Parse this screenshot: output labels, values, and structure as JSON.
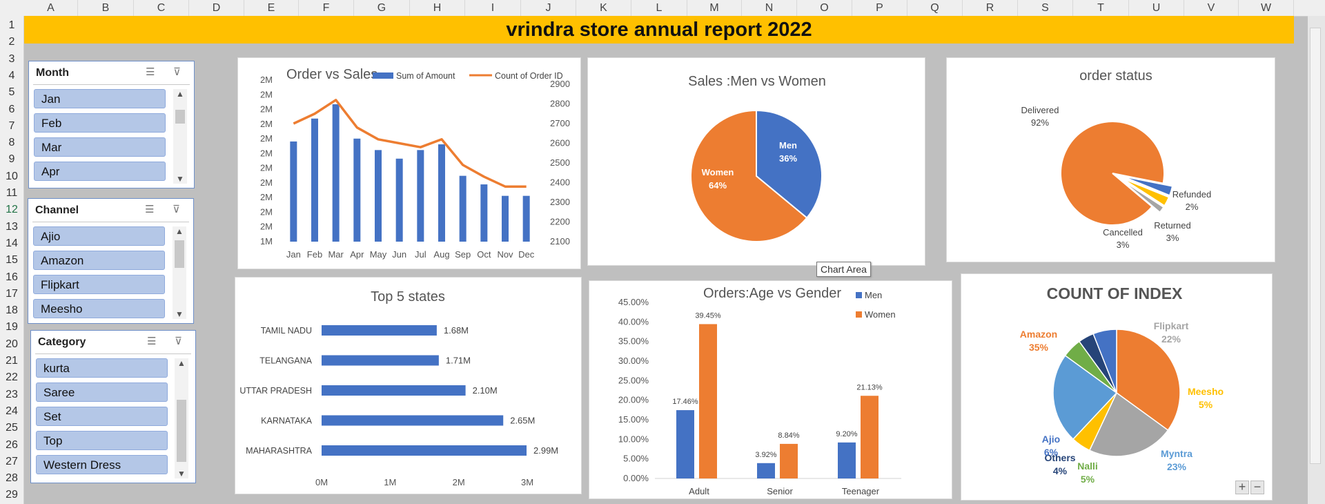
{
  "sheet": {
    "columns": [
      "A",
      "B",
      "C",
      "D",
      "E",
      "F",
      "G",
      "H",
      "I",
      "J",
      "K",
      "L",
      "M",
      "N",
      "O",
      "P",
      "Q",
      "R",
      "S",
      "T",
      "U",
      "V",
      "W"
    ],
    "rows": [
      "1",
      "2",
      "3",
      "4",
      "5",
      "6",
      "7",
      "8",
      "9",
      "10",
      "11",
      "12",
      "13",
      "14",
      "15",
      "16",
      "17",
      "18",
      "19",
      "20",
      "21",
      "22",
      "23",
      "24",
      "25",
      "26",
      "27",
      "28",
      "29"
    ],
    "selected_row": "12"
  },
  "banner": {
    "title": "vrindra store annual report 2022"
  },
  "slicers": [
    {
      "title": "Month",
      "items": [
        "Jan",
        "Feb",
        "Mar",
        "Apr"
      ]
    },
    {
      "title": "Channel",
      "items": [
        "Ajio",
        "Amazon",
        "Flipkart",
        "Meesho"
      ]
    },
    {
      "title": "Category",
      "items": [
        "kurta",
        "Saree",
        "Set",
        "Top",
        "Western Dress"
      ]
    }
  ],
  "icons": {
    "multiselect": "multiselect-icon",
    "clear_filter": "clear-filter-icon"
  },
  "tooltip": {
    "text": "Chart Area"
  },
  "zoom": {
    "plus": "+",
    "minus": "−"
  },
  "colors": {
    "blue": "#4472c4",
    "orange": "#ed7d31",
    "gray": "#a5a5a5",
    "gold": "#ffc000",
    "lightblue": "#5b9bd5",
    "green": "#70ad47",
    "navy": "#264478"
  },
  "chart_data": [
    {
      "id": "order_vs_sales",
      "type": "bar",
      "title": "Order vs Sales",
      "categories": [
        "Jan",
        "Feb",
        "Mar",
        "Apr",
        "May",
        "Jun",
        "Jul",
        "Aug",
        "Sep",
        "Oct",
        "Nov",
        "Dec"
      ],
      "series": [
        {
          "name": "Sum of Amount",
          "type": "bar",
          "axis": "left",
          "values": [
            1.85,
            1.93,
            1.98,
            1.86,
            1.82,
            1.79,
            1.82,
            1.84,
            1.73,
            1.7,
            1.66,
            1.66
          ]
        },
        {
          "name": "Count of Order ID",
          "type": "line",
          "axis": "right",
          "values": [
            2700,
            2750,
            2820,
            2680,
            2620,
            2600,
            2580,
            2620,
            2490,
            2430,
            2380,
            2380
          ]
        }
      ],
      "yleft_ticks": [
        "2M",
        "2M",
        "2M",
        "2M",
        "2M",
        "2M",
        "2M",
        "2M",
        "2M",
        "2M",
        "2M",
        "1M"
      ],
      "yleft_range": [
        1.5,
        2.05
      ],
      "yright_ticks": [
        "2900",
        "2800",
        "2700",
        "2600",
        "2500",
        "2400",
        "2300",
        "2200",
        "2100"
      ],
      "yright_range": [
        2100,
        2900
      ]
    },
    {
      "id": "sales_men_women",
      "type": "pie",
      "title": "Sales :Men vs Women",
      "labels": [
        "Men",
        "Women"
      ],
      "values": [
        36,
        64
      ],
      "data_labels": [
        "36%",
        "64%"
      ]
    },
    {
      "id": "order_status",
      "type": "pie",
      "title": "order status",
      "labels": [
        "Delivered",
        "Cancelled",
        "Returned",
        "Refunded"
      ],
      "values": [
        92,
        3,
        3,
        2
      ],
      "data_labels": [
        "92%",
        "3%",
        "3%",
        "2%"
      ]
    },
    {
      "id": "top5_states",
      "type": "bar",
      "orientation": "horizontal",
      "title": "Top 5 states",
      "categories": [
        "TAMIL NADU",
        "TELANGANA",
        "UTTAR PRADESH",
        "KARNATAKA",
        "MAHARASHTRA"
      ],
      "values": [
        1.68,
        1.71,
        2.1,
        2.65,
        2.99
      ],
      "data_labels": [
        "1.68M",
        "1.71M",
        "2.10M",
        "2.65M",
        "2.99M"
      ],
      "xticks": [
        "0M",
        "1M",
        "2M",
        "3M"
      ],
      "xlim": [
        0,
        3
      ]
    },
    {
      "id": "orders_age_gender",
      "type": "bar",
      "title": "Orders:Age vs Gender",
      "categories": [
        "Adult",
        "Senior",
        "Teenager"
      ],
      "series": [
        {
          "name": "Men",
          "values": [
            17.46,
            3.92,
            9.2
          ],
          "data_labels": [
            "17.46%",
            "3.92%",
            "9.20%"
          ]
        },
        {
          "name": "Women",
          "values": [
            39.45,
            8.84,
            21.13
          ],
          "data_labels": [
            "39.45%",
            "8.84%",
            "21.13%"
          ]
        }
      ],
      "yticks": [
        "45.00%",
        "40.00%",
        "35.00%",
        "30.00%",
        "25.00%",
        "20.00%",
        "15.00%",
        "10.00%",
        "5.00%",
        "0.00%"
      ],
      "ylim": [
        0,
        45
      ]
    },
    {
      "id": "count_of_index",
      "type": "pie",
      "title": "COUNT OF INDEX",
      "labels": [
        "Amazon",
        "Flipkart",
        "Meesho",
        "Myntra",
        "Nalli",
        "Others",
        "Ajio"
      ],
      "values": [
        35,
        22,
        5,
        23,
        5,
        4,
        6
      ],
      "data_labels": [
        "35%",
        "22%",
        "5%",
        "23%",
        "5%",
        "4%",
        "6%"
      ]
    }
  ]
}
